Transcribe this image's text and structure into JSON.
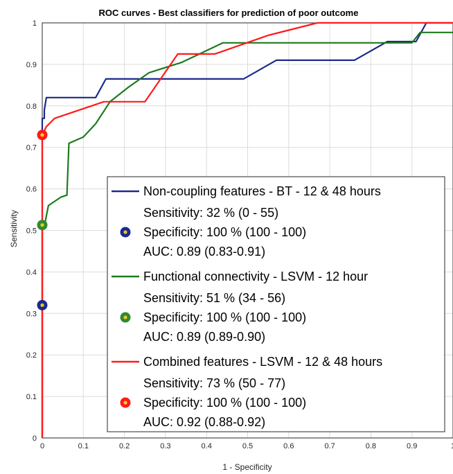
{
  "chart_data": {
    "type": "line",
    "title": "ROC curves - Best classifiers for prediction of poor outcome",
    "xlabel": "1 - Specificity",
    "ylabel": "Sensitivity",
    "xlim": [
      0,
      1
    ],
    "ylim": [
      0,
      1
    ],
    "xticks": [
      "0",
      "0.1",
      "0.2",
      "0.3",
      "0.4",
      "0.5",
      "0.6",
      "0.7",
      "0.8",
      "0.9",
      "1"
    ],
    "yticks": [
      "0",
      "0.1",
      "0.2",
      "0.3",
      "0.4",
      "0.5",
      "0.6",
      "0.7",
      "0.8",
      "0.9",
      "1"
    ],
    "grid": true,
    "legend_position": "bottom-right",
    "series": [
      {
        "name": "Non-coupling features - BT - 12 & 48 hours",
        "color": "#1c2a8c",
        "x": [
          0,
          0,
          0.005,
          0.005,
          0.01,
          0.13,
          0.155,
          0.49,
          0.57,
          0.76,
          0.84,
          0.91,
          0.935,
          1
        ],
        "y": [
          0,
          0.77,
          0.77,
          0.79,
          0.82,
          0.82,
          0.865,
          0.865,
          0.91,
          0.91,
          0.955,
          0.955,
          1,
          1
        ],
        "marker": {
          "x": 0,
          "y": 0.32,
          "fill": "#1c2a8c",
          "ring": "#1c2a8c",
          "center": "#e8c82a"
        },
        "info": [
          "Sensitivity: 32 % (0 - 55)",
          "Specificity: 100 % (100 - 100)",
          "AUC: 0.89 (0.83-0.91)"
        ]
      },
      {
        "name": "Functional connectivity - LSVM - 12 hour",
        "color": "#1e7a1e",
        "x": [
          0,
          0,
          0.005,
          0.015,
          0.045,
          0.06,
          0.065,
          0.1,
          0.13,
          0.165,
          0.21,
          0.26,
          0.34,
          0.44,
          0.9,
          0.92,
          1
        ],
        "y": [
          0,
          0.51,
          0.51,
          0.56,
          0.58,
          0.585,
          0.71,
          0.725,
          0.757,
          0.81,
          0.845,
          0.88,
          0.905,
          0.952,
          0.952,
          0.977,
          0.977
        ],
        "marker": {
          "x": 0,
          "y": 0.513,
          "fill": "#2e8b2e",
          "ring": "#2e8b2e",
          "center": "#e8c82a"
        },
        "info": [
          "Sensitivity: 51 % (34 - 56)",
          "Specificity: 100 % (100 - 100)",
          "AUC: 0.89 (0.89-0.90)"
        ]
      },
      {
        "name": "Combined features - LSVM - 12 & 48 hours",
        "color": "#ff1a1a",
        "x": [
          0,
          0,
          0.01,
          0.03,
          0.15,
          0.25,
          0.33,
          0.42,
          0.55,
          0.67,
          1
        ],
        "y": [
          0,
          0.73,
          0.75,
          0.77,
          0.81,
          0.81,
          0.925,
          0.925,
          0.97,
          1,
          1
        ],
        "marker": {
          "x": 0,
          "y": 0.73,
          "fill": "#ff1a1a",
          "ring": "#ff1a1a",
          "center": "#f2d21e"
        },
        "info": [
          "Sensitivity: 73 % (50 - 77)",
          "Specificity: 100 % (100 - 100)",
          "AUC: 0.92 (0.88-0.92)"
        ]
      }
    ]
  }
}
